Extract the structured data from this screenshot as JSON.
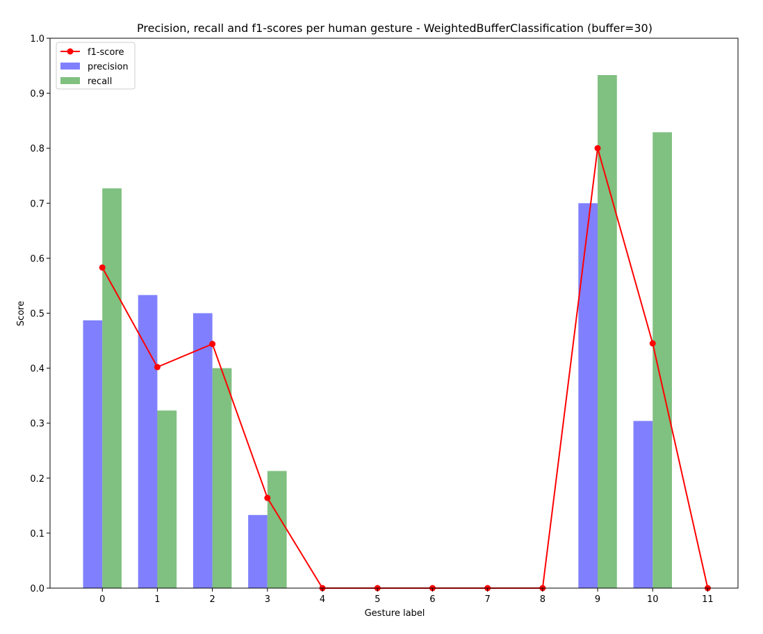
{
  "chart_data": {
    "type": "bar",
    "title": "Precision, recall and f1-scores per human gesture - WeightedBufferClassification (buffer=30)",
    "xlabel": "Gesture label",
    "ylabel": "Score",
    "ylim": [
      0,
      1.0
    ],
    "xlim": [
      -0.95,
      11.55
    ],
    "yticks": [
      "0.0",
      "0.1",
      "0.2",
      "0.3",
      "0.4",
      "0.5",
      "0.6",
      "0.7",
      "0.8",
      "0.9",
      "1.0"
    ],
    "categories": [
      "0",
      "1",
      "2",
      "3",
      "4",
      "5",
      "6",
      "7",
      "8",
      "9",
      "10",
      "11"
    ],
    "grid": false,
    "legend_position": "top-left",
    "series": [
      {
        "name": "precision",
        "kind": "bar",
        "color": "#8080ff",
        "values": [
          0.487,
          0.533,
          0.5,
          0.133,
          0.0,
          0.0,
          0.0,
          0.0,
          0.0,
          0.7,
          0.304,
          0.0
        ]
      },
      {
        "name": "recall",
        "kind": "bar",
        "color": "#80c080",
        "values": [
          0.727,
          0.323,
          0.4,
          0.213,
          0.0,
          0.0,
          0.0,
          0.0,
          0.0,
          0.933,
          0.829,
          0.0
        ]
      },
      {
        "name": "f1-score",
        "kind": "line",
        "color": "#ff0000",
        "values": [
          0.583,
          0.402,
          0.444,
          0.164,
          0.0,
          0.0,
          0.0,
          0.0,
          0.0,
          0.8,
          0.445,
          0.0
        ]
      }
    ]
  }
}
